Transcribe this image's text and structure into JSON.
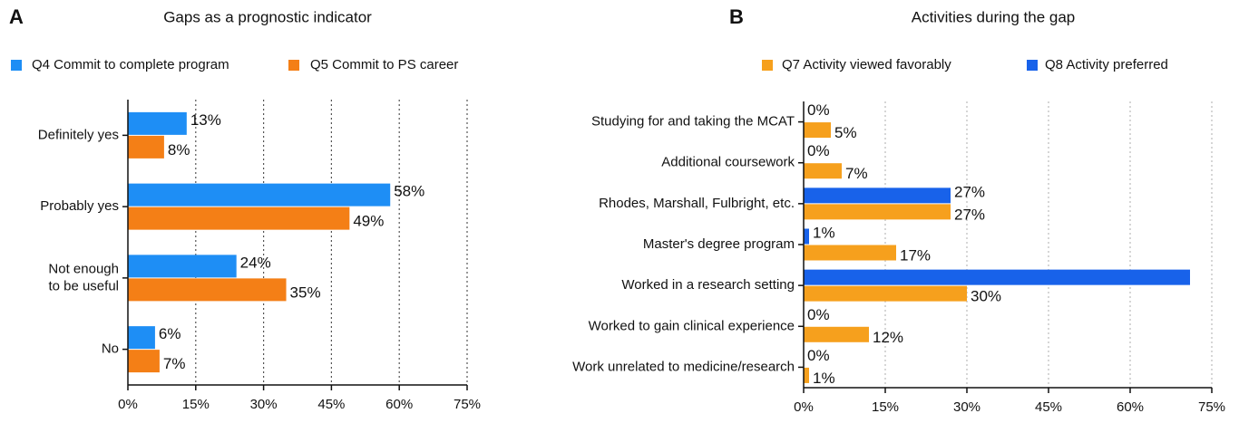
{
  "chart_data": [
    {
      "type": "barh",
      "panel": "A",
      "title": "Gaps as a prognostic indicator",
      "categories": [
        "Definitely yes",
        "Probably yes",
        "Not enough\nto be useful",
        "No"
      ],
      "series": [
        {
          "name": "Q4 Commit to complete program",
          "color": "#1e8ef5",
          "values": [
            13,
            58,
            24,
            6
          ],
          "value_labels": [
            "13%",
            "58%",
            "24%",
            "6%"
          ]
        },
        {
          "name": "Q5 Commit to PS career",
          "color": "#f47f16",
          "values": [
            8,
            49,
            35,
            7
          ],
          "value_labels": [
            "8%",
            "49%",
            "35%",
            "7%"
          ]
        }
      ],
      "xlim": [
        0,
        75
      ],
      "xticks": [
        {
          "value": 0,
          "label": "0%"
        },
        {
          "value": 15,
          "label": "15%"
        },
        {
          "value": 30,
          "label": "30%"
        },
        {
          "value": 45,
          "label": "45%"
        },
        {
          "value": 60,
          "label": "60%"
        },
        {
          "value": 75,
          "label": "75%"
        }
      ],
      "grid": true
    },
    {
      "type": "barh",
      "panel": "B",
      "title": "Activities during the gap",
      "categories": [
        "Studying for and taking the MCAT",
        "Additional coursework",
        "Rhodes, Marshall, Fulbright, etc.",
        "Master's degree program",
        "Worked in a research setting",
        "Worked to gain clinical experience",
        "Work unrelated to medicine/research"
      ],
      "series": [
        {
          "name": "Q8 Activity preferred",
          "color": "#1862ea",
          "values": [
            0,
            0,
            27,
            1,
            71,
            0,
            0
          ],
          "value_labels": [
            "0%",
            "0%",
            "27%",
            "1%",
            null,
            "0%",
            "0%"
          ]
        },
        {
          "name": "Q7 Activity viewed favorably",
          "color": "#f6a01d",
          "values": [
            5,
            7,
            27,
            17,
            30,
            12,
            1
          ],
          "value_labels": [
            "5%",
            "7%",
            "27%",
            "17%",
            "30%",
            "12%",
            "1%"
          ]
        }
      ],
      "xlim": [
        0,
        75
      ],
      "xticks": [
        {
          "value": 0,
          "label": "0%"
        },
        {
          "value": 15,
          "label": "15%"
        },
        {
          "value": 30,
          "label": "30%"
        },
        {
          "value": 45,
          "label": "45%"
        },
        {
          "value": 60,
          "label": "60%"
        },
        {
          "value": 75,
          "label": "75%"
        }
      ],
      "grid": true
    }
  ]
}
